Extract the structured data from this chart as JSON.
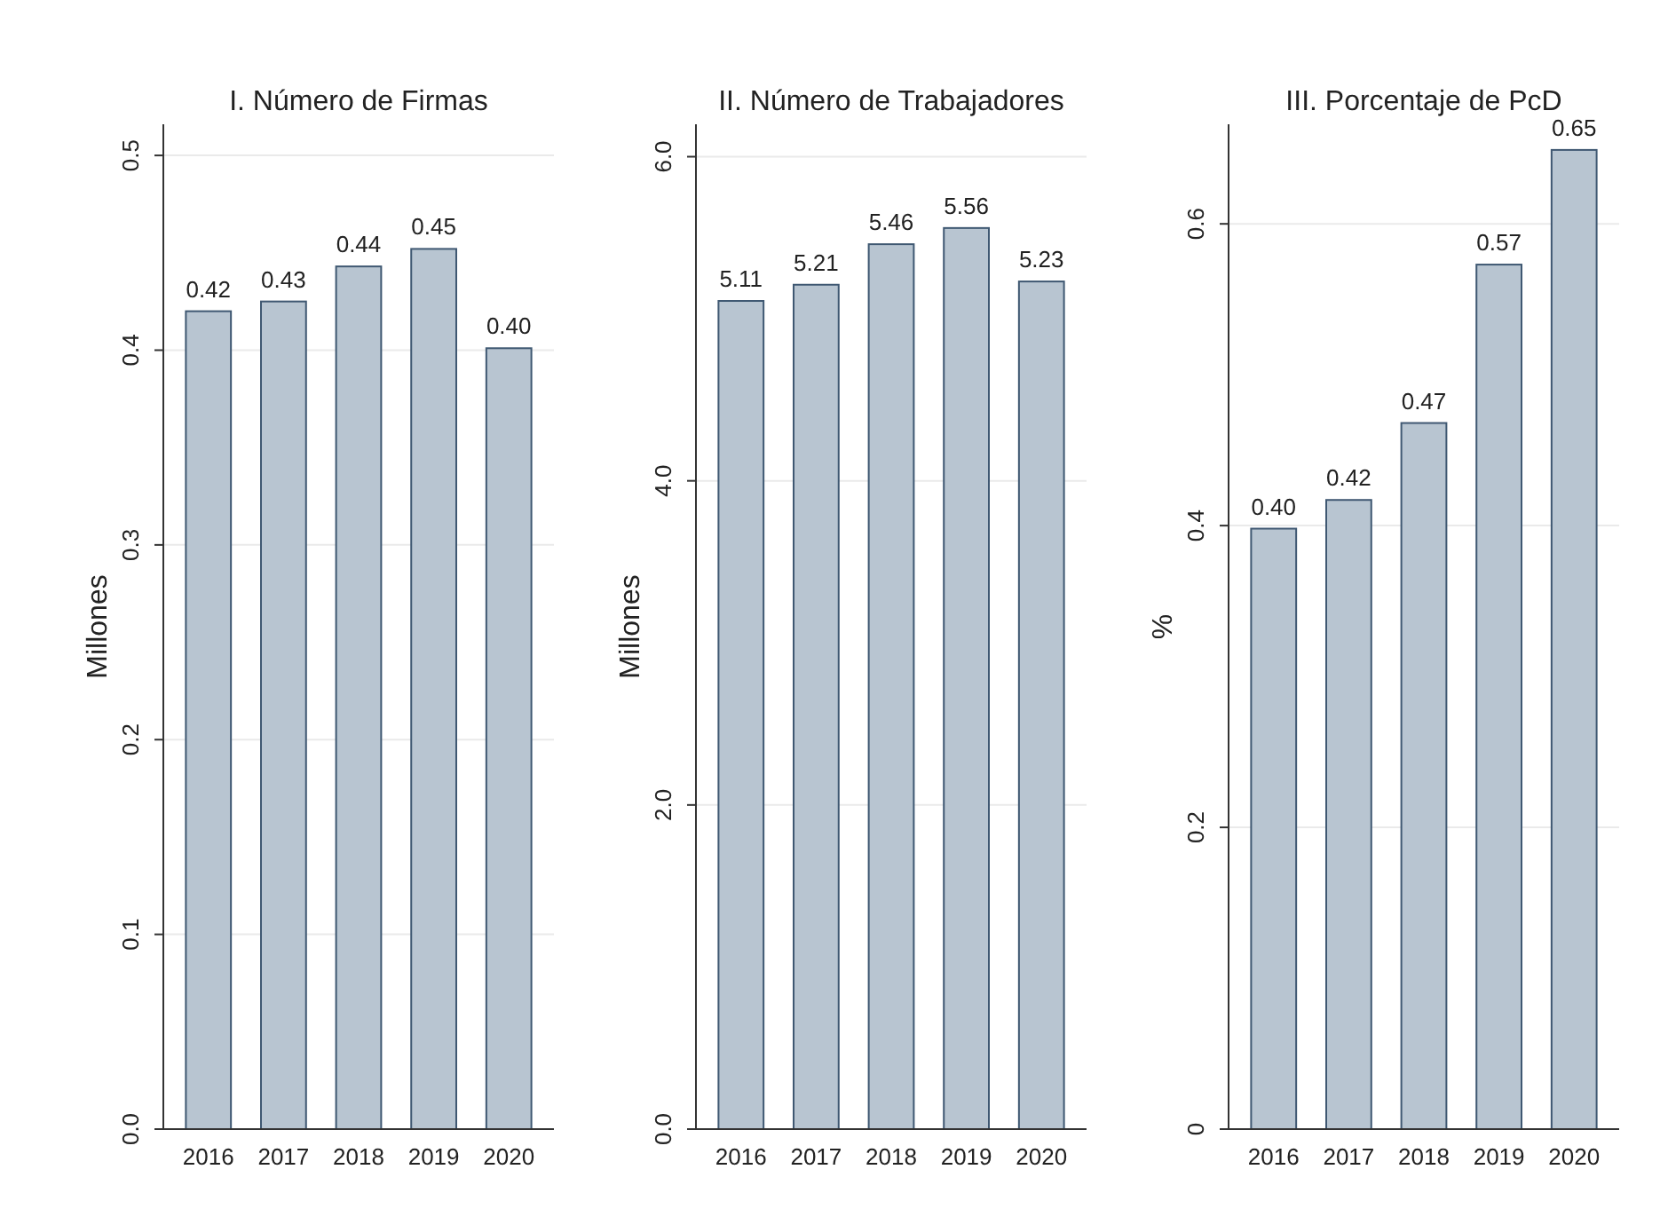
{
  "chart_data": [
    {
      "type": "bar",
      "title": "I. Número de Firmas",
      "ylabel": "Millones",
      "categories": [
        "2016",
        "2017",
        "2018",
        "2019",
        "2020"
      ],
      "values": [
        0.42,
        0.425,
        0.443,
        0.452,
        0.401
      ],
      "value_labels": [
        "0.42",
        "0.43",
        "0.44",
        "0.45",
        "0.40"
      ],
      "color": "#b8c5d1",
      "ylim": [
        0,
        0.516
      ],
      "yticks": [
        {
          "value": 0,
          "label": "0.0"
        },
        0.1,
        0.2,
        0.3,
        0.4,
        0.5
      ],
      "grid": "y"
    },
    {
      "type": "bar",
      "title": "II. Número de Trabajadores",
      "ylabel": "Millones",
      "categories": [
        "2016",
        "2017",
        "2018",
        "2019",
        "2020"
      ],
      "values": [
        5.11,
        5.21,
        5.46,
        5.56,
        5.23
      ],
      "value_labels": [
        "5.11",
        "5.21",
        "5.46",
        "5.56",
        "5.23"
      ],
      "color": "#b8c5d1",
      "ylim": [
        0,
        6.2
      ],
      "yticks": [
        {
          "value": 0,
          "label": "0.0"
        },
        {
          "value": 2,
          "label": "2.0"
        },
        {
          "value": 4,
          "label": "4.0"
        },
        {
          "value": 6,
          "label": "6.0"
        }
      ],
      "grid": "y"
    },
    {
      "type": "bar",
      "title": "III. Porcentaje de PcD",
      "ylabel": "%",
      "categories": [
        "2016",
        "2017",
        "2018",
        "2019",
        "2020"
      ],
      "values": [
        0.398,
        0.417,
        0.468,
        0.573,
        0.649
      ],
      "value_labels": [
        "0.40",
        "0.42",
        "0.47",
        "0.57",
        "0.65"
      ],
      "color": "#b8c5d1",
      "ylim": [
        0,
        0.666
      ],
      "yticks": [
        {
          "value": 0,
          "label": "0"
        },
        0.2,
        0.4,
        0.6
      ],
      "grid": "y"
    }
  ]
}
